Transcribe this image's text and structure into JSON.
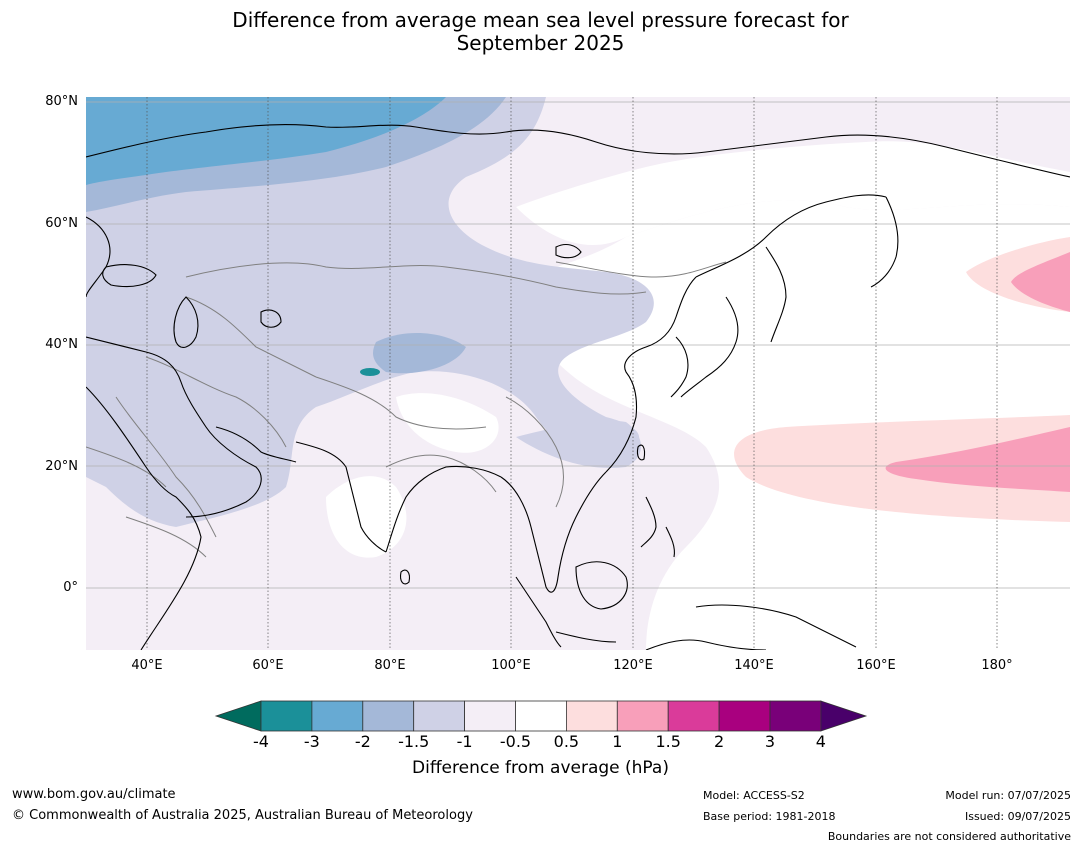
{
  "title_line1": "Difference from average mean sea level pressure forecast for",
  "title_line2": "September 2025",
  "lat_labels": [
    "80°N",
    "60°N",
    "40°N",
    "20°N",
    "0°"
  ],
  "lon_labels": [
    "40°E",
    "60°E",
    "80°E",
    "100°E",
    "120°E",
    "140°E",
    "160°E",
    "180°"
  ],
  "legend": {
    "title": "Difference from average (hPa)",
    "tick_labels": [
      "-4",
      "-3",
      "-2",
      "-1.5",
      "-1",
      "-0.5",
      "0.5",
      "1",
      "1.5",
      "2",
      "3",
      "4"
    ],
    "colors": {
      "below_-4": "#006b5e",
      "-4_to_-3": "#1b9099",
      "-3_to_-2": "#67aad3",
      "-2_to_-1.5": "#a4b8d8",
      "-1.5_to_-1": "#cfd1e6",
      "-1_to_-0.5": "#f4eef6",
      "-0.5_to_0.5": "#ffffff",
      "0.5_to_1": "#fddede",
      "1_to_1.5": "#f89fba",
      "1.5_to_2": "#da3b9a",
      "2_to_3": "#a9007f",
      "3_to_4": "#790079",
      "above_4": "#49006a"
    }
  },
  "footer": {
    "website": "www.bom.gov.au/climate",
    "copyright": "© Commonwealth of Australia 2025, Australian Bureau of Meteorology",
    "model": "Model: ACCESS-S2",
    "base_period": "Base period: 1981-2018",
    "model_run": "Model run: 07/07/2025",
    "issued": "Issued: 09/07/2025",
    "disclaimer": "Boundaries are not considered authoritative"
  }
}
